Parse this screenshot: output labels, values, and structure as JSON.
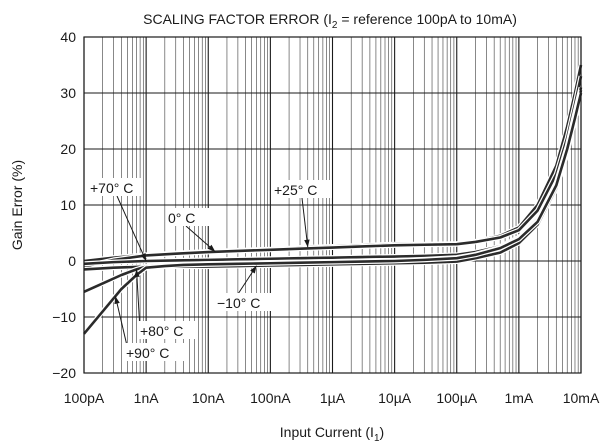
{
  "chart_data": {
    "type": "line",
    "title": {
      "prefix": "SCALING FACTOR ERROR (I",
      "sub": "2",
      "suffix": " = reference 100pA to 10mA)"
    },
    "xlabel": {
      "prefix": "Input Current (I",
      "sub": "1",
      "suffix": ")"
    },
    "ylabel": "Gain Error (%)",
    "x_scale": "log",
    "xlim": [
      1e-10,
      0.01
    ],
    "ylim": [
      -20,
      40
    ],
    "grid": true,
    "x_ticks": [
      {
        "value": 1e-10,
        "label": "100pA"
      },
      {
        "value": 1e-09,
        "label": "1nA"
      },
      {
        "value": 1e-08,
        "label": "10nA"
      },
      {
        "value": 1e-07,
        "label": "100nA"
      },
      {
        "value": 1e-06,
        "label": "1µA"
      },
      {
        "value": 1e-05,
        "label": "10µA"
      },
      {
        "value": 0.0001,
        "label": "100µA"
      },
      {
        "value": 0.001,
        "label": "1mA"
      },
      {
        "value": 0.01,
        "label": "10mA"
      }
    ],
    "y_ticks": [
      {
        "value": -20,
        "label": "−20"
      },
      {
        "value": -10,
        "label": "−10"
      },
      {
        "value": 0,
        "label": "0"
      },
      {
        "value": 10,
        "label": "10"
      },
      {
        "value": 20,
        "label": "20"
      },
      {
        "value": 30,
        "label": "30"
      },
      {
        "value": 40,
        "label": "40"
      }
    ],
    "series": [
      {
        "name": "+25°C",
        "x": [
          1e-10,
          3e-10,
          1e-09,
          3e-09,
          1e-08,
          3e-08,
          1e-07,
          3e-07,
          1e-06,
          3e-06,
          1e-05,
          3e-05,
          0.0001,
          0.0002,
          0.0005,
          0.001,
          0.002,
          0.004,
          0.006,
          0.008,
          0.01
        ],
        "y": [
          0,
          0.6,
          1.1,
          1.4,
          1.7,
          1.9,
          2.1,
          2.4,
          2.6,
          2.8,
          3.0,
          3.0,
          3.1,
          3.5,
          4.5,
          6.0,
          10.0,
          17.0,
          24.0,
          30.0,
          35.0
        ]
      },
      {
        "name": "0°C",
        "x": [
          1e-10,
          3e-10,
          1e-09,
          3e-09,
          1e-08,
          3e-08,
          1e-07,
          3e-07,
          1e-06,
          3e-06,
          1e-05,
          3e-05,
          0.0001,
          0.0002,
          0.0005,
          0.001,
          0.002,
          0.004,
          0.006,
          0.008,
          0.01
        ],
        "y": [
          -1.0,
          0.2,
          1.0,
          1.3,
          1.6,
          1.8,
          2.0,
          2.2,
          2.4,
          2.6,
          2.8,
          2.9,
          3.0,
          3.4,
          4.2,
          5.5,
          9.0,
          15.5,
          22.0,
          28.0,
          33.0
        ]
      },
      {
        "name": "+70°C",
        "x": [
          1e-10,
          3e-10,
          1e-09,
          3e-09,
          1e-08,
          3e-08,
          1e-07,
          3e-07,
          1e-06,
          3e-06,
          1e-05,
          3e-05,
          0.0001,
          0.0002,
          0.0005,
          0.001,
          0.002,
          0.004,
          0.006,
          0.008,
          0.01
        ],
        "y": [
          -0.5,
          -0.2,
          0.0,
          0.1,
          0.2,
          0.3,
          0.4,
          0.5,
          0.6,
          0.7,
          0.8,
          0.9,
          1.1,
          1.6,
          2.6,
          4.2,
          7.5,
          14.0,
          20.5,
          26.5,
          31.0
        ]
      },
      {
        "name": "−10°C",
        "x": [
          1e-10,
          3e-10,
          1e-09,
          3e-09,
          1e-08,
          3e-08,
          1e-07,
          3e-07,
          1e-06,
          3e-06,
          1e-05,
          3e-05,
          0.0001,
          0.0002,
          0.0005,
          0.001,
          0.002,
          0.004,
          0.006,
          0.008,
          0.01
        ],
        "y": [
          -1.5,
          -1.2,
          -1.0,
          -1.0,
          -1.0,
          -0.9,
          -0.8,
          -0.7,
          -0.6,
          -0.5,
          -0.4,
          -0.3,
          -0.1,
          0.5,
          1.5,
          3.2,
          6.5,
          13.0,
          19.5,
          25.5,
          30.0
        ]
      },
      {
        "name": "+80°C",
        "x": [
          1e-10,
          2e-10,
          4e-10,
          7e-10,
          1e-09,
          2e-09,
          4e-09,
          1e-08,
          3e-08,
          1e-07,
          3e-07,
          1e-06,
          3e-06,
          1e-05,
          3e-05,
          0.0001,
          0.0002,
          0.0005,
          0.001,
          0.002,
          0.004,
          0.006,
          0.008,
          0.01
        ],
        "y": [
          -5.5,
          -4.0,
          -2.5,
          -1.5,
          -1.0,
          -0.8,
          -0.6,
          -0.5,
          -0.4,
          -0.3,
          -0.2,
          -0.1,
          0.0,
          0.1,
          0.3,
          0.6,
          1.2,
          2.4,
          4.0,
          7.2,
          13.8,
          20.2,
          26.0,
          30.5
        ]
      },
      {
        "name": "+90°C",
        "x": [
          1e-10,
          2e-10,
          4e-10,
          7e-10,
          1e-09,
          2e-09,
          4e-09,
          1e-08,
          3e-08,
          1e-07,
          3e-07,
          1e-06,
          3e-06,
          1e-05,
          3e-05,
          0.0001,
          0.0002,
          0.0005,
          0.001,
          0.002,
          0.004,
          0.006,
          0.008,
          0.01
        ],
        "y": [
          -13.0,
          -9.0,
          -5.0,
          -2.5,
          -1.2,
          -0.9,
          -0.7,
          -0.6,
          -0.5,
          -0.4,
          -0.3,
          -0.2,
          -0.1,
          0.0,
          0.2,
          0.5,
          1.1,
          2.3,
          3.9,
          7.0,
          13.5,
          20.0,
          25.5,
          30.0
        ]
      }
    ],
    "annotations": [
      {
        "label": "+70° C",
        "series": "+70°C"
      },
      {
        "label": "0° C",
        "series": "0°C"
      },
      {
        "label": "+25° C",
        "series": "+25°C"
      },
      {
        "label": "−10° C",
        "series": "−10°C"
      },
      {
        "label": "+80° C",
        "series": "+80°C"
      },
      {
        "label": "+90° C",
        "series": "+90°C"
      }
    ]
  }
}
